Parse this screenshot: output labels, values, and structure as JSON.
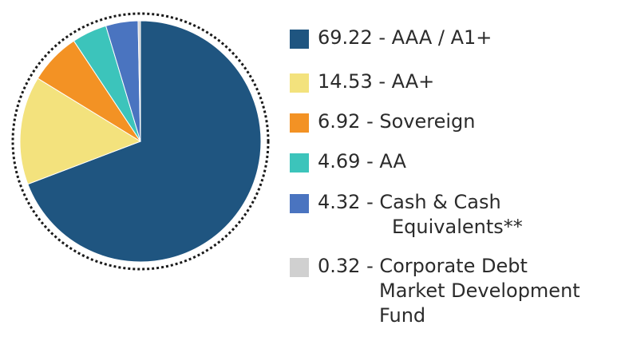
{
  "chart_data": {
    "type": "pie",
    "title": "",
    "slices": [
      {
        "value": 69.22,
        "value_text": "69.22",
        "label": "AAA / A1+",
        "color": "#1f5580"
      },
      {
        "value": 14.53,
        "value_text": "14.53",
        "label": "AA+",
        "color": "#f3e27d"
      },
      {
        "value": 6.92,
        "value_text": "6.92",
        "label": "Sovereign",
        "color": "#f39224"
      },
      {
        "value": 4.69,
        "value_text": "4.69",
        "label": "AA",
        "color": "#3cc4bb"
      },
      {
        "value": 4.32,
        "value_text": "4.32",
        "label": "Cash & Cash",
        "label_cont": [
          "Equivalents**"
        ],
        "color": "#4a74c0"
      },
      {
        "value": 0.32,
        "value_text": "0.32",
        "label": "Corporate Debt",
        "label_cont": [
          "Market Development",
          "Fund"
        ],
        "color": "#d0d0d0"
      }
    ],
    "legend": "right",
    "separator": " - ",
    "outline": "dotted"
  }
}
